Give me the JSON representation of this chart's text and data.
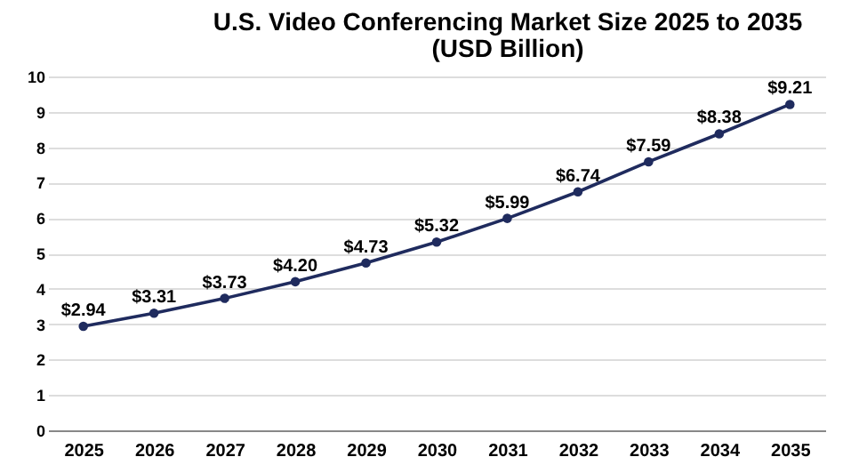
{
  "chart_data": {
    "type": "line",
    "title": "U.S. Video Conferencing Market Size 2025 to 2035",
    "subtitle": "(USD Billion)",
    "categories": [
      "2025",
      "2026",
      "2027",
      "2028",
      "2029",
      "2030",
      "2031",
      "2032",
      "2033",
      "2034",
      "2035"
    ],
    "series": [
      {
        "color": "#1f2b5e",
        "values": [
          2.94,
          3.31,
          3.73,
          4.2,
          4.73,
          5.32,
          5.99,
          6.74,
          7.59,
          8.38,
          9.21
        ],
        "value_labels": [
          "$2.94",
          "$3.31",
          "$3.73",
          "$4.20",
          "$4.73",
          "$5.32",
          "$5.99",
          "$6.74",
          "$7.59",
          "$8.38",
          "$9.21"
        ]
      }
    ],
    "ylim": [
      0,
      10
    ],
    "yticks": [
      0,
      1,
      2,
      3,
      4,
      5,
      6,
      7,
      8,
      9,
      10
    ],
    "grid": "y",
    "marker": "circle",
    "line_style": "solid",
    "legend": false
  }
}
